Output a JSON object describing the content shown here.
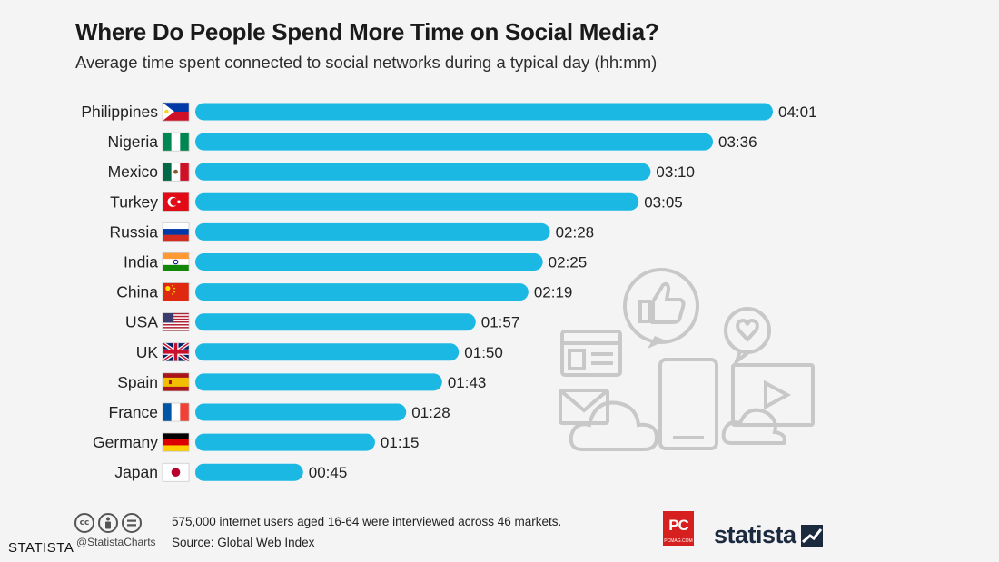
{
  "chart_data": {
    "type": "bar",
    "orientation": "horizontal",
    "title": "Where Do People Spend More Time on Social Media?",
    "subtitle": "Average time spent connected to social networks during a typical day (hh:mm)",
    "xlabel": "",
    "ylabel": "",
    "xlim": [
      0,
      241
    ],
    "unit": "minutes",
    "categories": [
      "Philippines",
      "Nigeria",
      "Mexico",
      "Turkey",
      "Russia",
      "India",
      "China",
      "USA",
      "UK",
      "Spain",
      "France",
      "Germany",
      "Japan"
    ],
    "values": [
      241,
      216,
      190,
      185,
      148,
      145,
      139,
      117,
      110,
      103,
      88,
      75,
      45
    ],
    "value_labels": [
      "04:01",
      "03:36",
      "03:10",
      "03:05",
      "02:28",
      "02:25",
      "02:19",
      "01:57",
      "01:50",
      "01:43",
      "01:28",
      "01:15",
      "00:45"
    ],
    "flags": [
      "philippines-flag-icon",
      "nigeria-flag-icon",
      "mexico-flag-icon",
      "turkey-flag-icon",
      "russia-flag-icon",
      "india-flag-icon",
      "china-flag-icon",
      "usa-flag-icon",
      "uk-flag-icon",
      "spain-flag-icon",
      "france-flag-icon",
      "germany-flag-icon",
      "japan-flag-icon"
    ],
    "bar_color": "#1ab8e3",
    "grid": false
  },
  "footer": {
    "note": "575,000 internet users aged 16-64 were interviewed across 46 markets.",
    "source": "Source: Global Web Index",
    "handle": "@StatistaCharts",
    "cc_icons": [
      "cc",
      "by",
      "nd"
    ]
  },
  "logos": {
    "pc": "PC",
    "pc_sub": "PCMAG.COM",
    "statista": "statista"
  },
  "watermark": "STATISTA",
  "decor_icons": [
    "thumbs-up-bubble-icon",
    "heart-bubble-icon",
    "browser-window-icon",
    "envelope-icon",
    "cloud-icon",
    "tablet-icon",
    "video-play-icon"
  ]
}
